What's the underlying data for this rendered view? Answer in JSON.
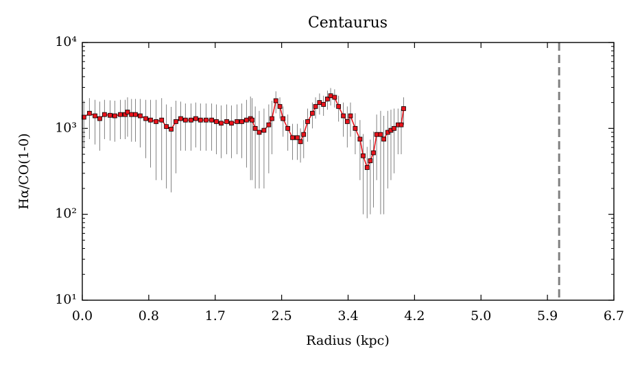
{
  "chart_data": {
    "type": "line",
    "title": "Centaurus",
    "x_label": "Radius (kpc)",
    "y_label": "Hα/CO(1-0)",
    "log_y": true,
    "xlim": [
      0,
      6.7
    ],
    "ylim": [
      10,
      10000
    ],
    "xticks": [
      {
        "value": 0,
        "label": "0.0"
      },
      {
        "value": 0.8375,
        "label": "0.8"
      },
      {
        "value": 1.675,
        "label": "1.7"
      },
      {
        "value": 2.5125,
        "label": "2.5"
      },
      {
        "value": 3.35,
        "label": "3.4"
      },
      {
        "value": 4.1875,
        "label": "4.2"
      },
      {
        "value": 5.025,
        "label": "5.0"
      },
      {
        "value": 5.8625,
        "label": "5.9"
      },
      {
        "value": 6.7,
        "label": "6.7"
      }
    ],
    "yticks": [
      {
        "value": 10,
        "label": "10¹"
      },
      {
        "value": 100,
        "label": "10²"
      },
      {
        "value": 1000,
        "label": "10³"
      },
      {
        "value": 10000,
        "label": "10⁴"
      }
    ],
    "vline": {
      "x": 6.01,
      "color": "#808080"
    },
    "x": [
      0.02,
      0.09,
      0.16,
      0.22,
      0.28,
      0.35,
      0.41,
      0.48,
      0.54,
      0.57,
      0.62,
      0.67,
      0.73,
      0.8,
      0.86,
      0.93,
      1.0,
      1.06,
      1.12,
      1.18,
      1.24,
      1.3,
      1.37,
      1.43,
      1.49,
      1.56,
      1.63,
      1.69,
      1.75,
      1.82,
      1.88,
      1.95,
      2.01,
      2.07,
      2.12,
      2.14,
      2.18,
      2.23,
      2.29,
      2.35,
      2.39,
      2.44,
      2.49,
      2.53,
      2.59,
      2.65,
      2.71,
      2.75,
      2.79,
      2.84,
      2.9,
      2.94,
      2.99,
      3.04,
      3.09,
      3.13,
      3.18,
      3.23,
      3.29,
      3.34,
      3.38,
      3.44,
      3.5,
      3.54,
      3.59,
      3.63,
      3.67,
      3.71,
      3.76,
      3.8,
      3.85,
      3.89,
      3.93,
      3.98,
      4.02,
      4.05
    ],
    "series": [
      {
        "name": "Centaurus",
        "color": "#e8141c",
        "values": [
          1350,
          1500,
          1400,
          1300,
          1450,
          1420,
          1400,
          1450,
          1450,
          1550,
          1450,
          1450,
          1400,
          1300,
          1250,
          1200,
          1250,
          1050,
          980,
          1200,
          1300,
          1250,
          1250,
          1300,
          1250,
          1250,
          1250,
          1200,
          1150,
          1200,
          1150,
          1200,
          1200,
          1250,
          1300,
          1250,
          1000,
          900,
          950,
          1100,
          1300,
          2100,
          1800,
          1300,
          1000,
          780,
          780,
          700,
          850,
          1200,
          1500,
          1800,
          2000,
          1900,
          2200,
          2400,
          2300,
          1800,
          1400,
          1200,
          1400,
          1000,
          750,
          480,
          350,
          420,
          520,
          850,
          850,
          750,
          900,
          950,
          1000,
          1100,
          1100,
          1700
        ],
        "yerr": [
          750,
          750,
          750,
          750,
          700,
          700,
          700,
          700,
          700,
          750,
          750,
          750,
          800,
          850,
          900,
          950,
          1000,
          850,
          800,
          900,
          750,
          700,
          700,
          700,
          700,
          700,
          700,
          700,
          700,
          700,
          700,
          700,
          750,
          900,
          1050,
          1000,
          800,
          700,
          750,
          800,
          800,
          600,
          500,
          500,
          450,
          350,
          350,
          300,
          400,
          500,
          500,
          500,
          550,
          500,
          550,
          550,
          550,
          600,
          600,
          600,
          600,
          500,
          500,
          380,
          260,
          320,
          400,
          600,
          750,
          650,
          700,
          700,
          700,
          600,
          600,
          600
        ]
      }
    ]
  }
}
